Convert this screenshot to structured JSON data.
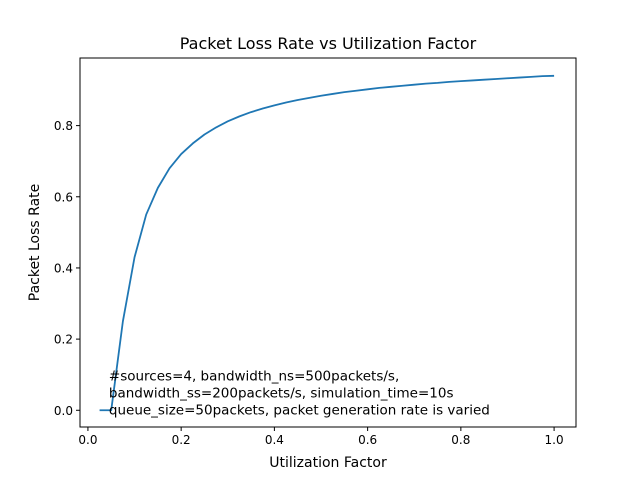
{
  "chart_data": {
    "type": "line",
    "title": "Packet Loss Rate vs Utilization Factor",
    "xlabel": "Utilization Factor",
    "ylabel": "Packet Loss Rate",
    "xlim": [
      -0.017,
      1.047
    ],
    "ylim": [
      -0.047,
      0.99
    ],
    "xticks": [
      0.0,
      0.2,
      0.4,
      0.6,
      0.8,
      1.0
    ],
    "xtick_labels": [
      "0.0",
      "0.2",
      "0.4",
      "0.6",
      "0.8",
      "1.0"
    ],
    "yticks": [
      0.0,
      0.2,
      0.4,
      0.6,
      0.8
    ],
    "ytick_labels": [
      "0.0",
      "0.2",
      "0.4",
      "0.6",
      "0.8"
    ],
    "grid": false,
    "legend": false,
    "series": [
      {
        "color": "#1f77b4",
        "x": [
          0.025,
          0.05,
          0.075,
          0.1,
          0.125,
          0.15,
          0.175,
          0.2,
          0.225,
          0.25,
          0.275,
          0.3,
          0.325,
          0.35,
          0.375,
          0.4,
          0.425,
          0.45,
          0.475,
          0.5,
          0.525,
          0.55,
          0.575,
          0.6,
          0.625,
          0.65,
          0.675,
          0.7,
          0.725,
          0.75,
          0.775,
          0.8,
          0.825,
          0.85,
          0.875,
          0.9,
          0.925,
          0.95,
          0.975,
          1.0
        ],
        "y": [
          0.0,
          0.0,
          0.25,
          0.43,
          0.55,
          0.625,
          0.68,
          0.72,
          0.75,
          0.775,
          0.795,
          0.812,
          0.826,
          0.838,
          0.848,
          0.857,
          0.865,
          0.872,
          0.878,
          0.884,
          0.889,
          0.894,
          0.898,
          0.902,
          0.906,
          0.909,
          0.912,
          0.915,
          0.918,
          0.92,
          0.923,
          0.925,
          0.927,
          0.929,
          0.931,
          0.933,
          0.935,
          0.937,
          0.939,
          0.94
        ]
      }
    ],
    "annotation": [
      "#sources=4, bandwidth_ns=500packets/s,",
      "bandwidth_ss=200packets/s, simulation_time=10s",
      "queue_size=50packets, packet generation rate is varied"
    ],
    "annotation_anchor": {
      "x": 0.045,
      "y": 0.0
    }
  }
}
